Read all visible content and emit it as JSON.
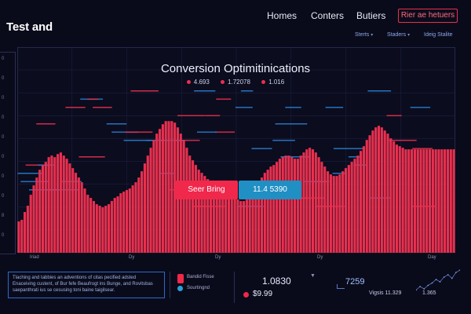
{
  "header": {
    "brand": "Test and",
    "nav": [
      {
        "label": "Homes"
      },
      {
        "label": "Conters"
      },
      {
        "label": "Butiers"
      }
    ],
    "cta_label": "Rier ae hetuers",
    "dropdowns": [
      {
        "label": "Sterts"
      },
      {
        "label": "Staders"
      },
      {
        "label": "Ideig Stalite"
      }
    ]
  },
  "chart": {
    "title": "Conversion Optimitinications",
    "legend": [
      {
        "label": "4.693"
      },
      {
        "label": "1.72078"
      },
      {
        "label": "1.016"
      }
    ],
    "x_labels": [
      "Iriad",
      "Dy",
      "Dy",
      "Dy",
      "Day"
    ],
    "left_axis_labels": [
      "0",
      "0",
      "0",
      "0",
      "0",
      "0",
      "0",
      "0",
      "8",
      "0"
    ],
    "colors": {
      "series_a": "#e8304f",
      "series_b": "#2a7fd0",
      "grid": "#1c2042"
    }
  },
  "chart_data": {
    "type": "bar",
    "title": "Conversion Optimitinications",
    "series": [
      {
        "name": "",
        "values": [
          20,
          21,
          26,
          30,
          37,
          43,
          48,
          53,
          56,
          58,
          61,
          62,
          61,
          63,
          64,
          62,
          60,
          57,
          54,
          51,
          48,
          45,
          41,
          37,
          35,
          33,
          31,
          30,
          29,
          30,
          31,
          33,
          35,
          36,
          38,
          39,
          40,
          41,
          43,
          45,
          48,
          52,
          57,
          62,
          67,
          72,
          76,
          79,
          82,
          84,
          84,
          84,
          83,
          80,
          76,
          72,
          67,
          62,
          59,
          56,
          53,
          51,
          49,
          47,
          46,
          44,
          43,
          41,
          40,
          39,
          37,
          36,
          35,
          34,
          33,
          33,
          34,
          36,
          38,
          41,
          45,
          48,
          51,
          53,
          55,
          56,
          58,
          60,
          61,
          62,
          62,
          61,
          60,
          60,
          62,
          64,
          66,
          67,
          66,
          64,
          61,
          58,
          55,
          52,
          50,
          49,
          49,
          50,
          52,
          54,
          56,
          58,
          60,
          62,
          65,
          68,
          72,
          75,
          78,
          80,
          81,
          80,
          78,
          76,
          73,
          71,
          69,
          68,
          67,
          66,
          66,
          66,
          66,
          66,
          66,
          66,
          66,
          66,
          66,
          66,
          66,
          66,
          66,
          66,
          66,
          66
        ]
      }
    ],
    "ylim": [
      0,
      100
    ]
  },
  "buttons": {
    "primary": "Seer Bring",
    "secondary": "11.4 5390"
  },
  "bottom": {
    "note_lines": [
      "Tlaching and tabbies an adventions of citas pecified adsted",
      "Enaceiving custent, of Bur fefe Beaufrogt ins Bunge, and Rovitsbas",
      "saepanthrati ius se cesusing toni baine taigilsear."
    ],
    "legend_items": [
      {
        "label": "Bandid Fisse"
      },
      {
        "label": "Sourtingnd"
      }
    ],
    "stat_main": "1.0830",
    "stat_sub": "$9.99",
    "metric_right": "7259",
    "foot_a": "Vigsis  11.329",
    "foot_b": "1.365",
    "spark_values": [
      3,
      6,
      4,
      7,
      9,
      12,
      10,
      14,
      16,
      13,
      18,
      20
    ]
  }
}
